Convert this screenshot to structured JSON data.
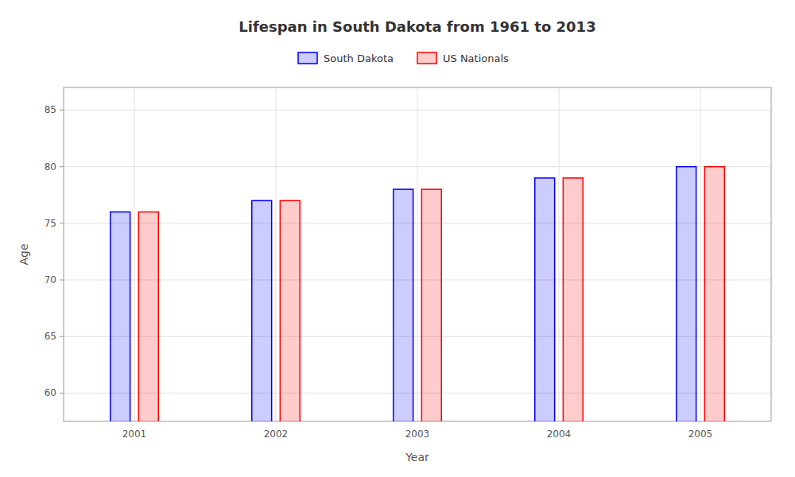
{
  "chart_data": {
    "type": "bar",
    "title": "Lifespan in South Dakota from 1961 to 2013",
    "x_label": "Year",
    "y_label": "Age",
    "categories": [
      "2001",
      "2002",
      "2003",
      "2004",
      "2005"
    ],
    "series": [
      {
        "name": "South Dakota",
        "color": "#0000ff",
        "values": [
          76,
          77,
          78,
          79,
          80
        ]
      },
      {
        "name": "US Nationals",
        "color": "#ff0000",
        "values": [
          76,
          77,
          78,
          79,
          80
        ]
      }
    ],
    "ylim": [
      57.5,
      87
    ],
    "yticks": [
      60,
      65,
      70,
      75,
      80,
      85
    ],
    "grid": true,
    "legend": "top"
  }
}
